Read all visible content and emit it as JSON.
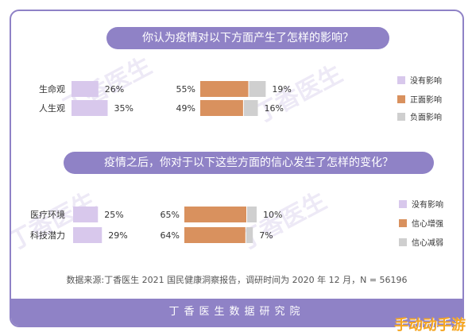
{
  "colors": {
    "none": "#d8c8ec",
    "positive": "#d9915e",
    "negative": "#cfcfcf",
    "accent": "#8f82c6",
    "text": "#333333"
  },
  "chart_data": [
    {
      "type": "bar",
      "title": "你认为疫情对以下方面产生了怎样的影响？",
      "categories": [
        "生命观",
        "人生观"
      ],
      "series": [
        {
          "name": "没有影响",
          "values": [
            26,
            35
          ],
          "labels": [
            "26%",
            "35%"
          ]
        },
        {
          "name": "正面影响",
          "values": [
            55,
            49
          ],
          "labels": [
            "55%",
            "49%"
          ]
        },
        {
          "name": "负面影响",
          "values": [
            19,
            16
          ],
          "labels": [
            "19%",
            "16%"
          ]
        }
      ],
      "legend_placement": "right"
    },
    {
      "type": "bar",
      "title": "疫情之后，你对于以下这些方面的信心发生了怎样的变化？",
      "categories": [
        "医疗环境",
        "科技潜力"
      ],
      "series": [
        {
          "name": "没有影响",
          "values": [
            25,
            29
          ],
          "labels": [
            "25%",
            "29%"
          ]
        },
        {
          "name": "信心增强",
          "values": [
            65,
            64
          ],
          "labels": [
            "65%",
            "64%"
          ]
        },
        {
          "name": "信心减弱",
          "values": [
            10,
            7
          ],
          "labels": [
            "10%",
            "7%"
          ]
        }
      ],
      "legend_placement": "right"
    }
  ],
  "source_note": "数据来源:丁香医生 2021 国民健康洞察报告，调研时间为 2020 年 12 月，N = 56196",
  "footer": "丁香医生数据研究院",
  "watermark": "丁香医生",
  "corner_brand": "手动动手游"
}
